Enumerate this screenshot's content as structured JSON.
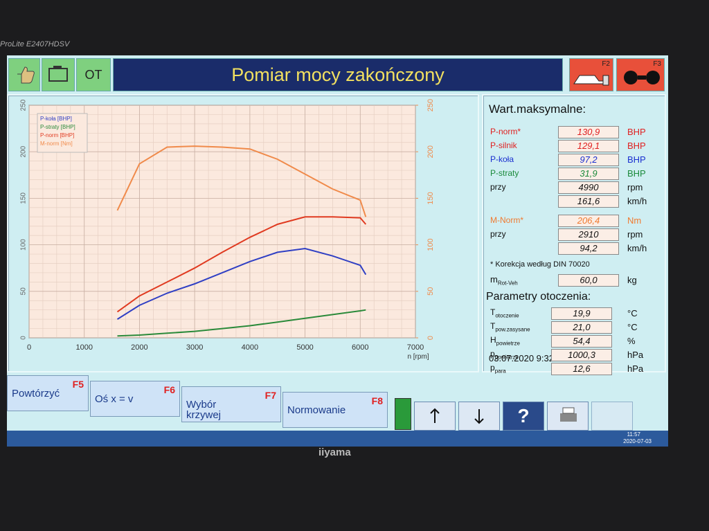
{
  "monitor": {
    "model": "ProLite E2407HDSV",
    "brand": "iiyama"
  },
  "header": {
    "ot": "OT",
    "title": "Pomiar mocy zakończony",
    "f2": "F2",
    "f3": "F3"
  },
  "chart_data": {
    "type": "line",
    "x_label": "n [rpm]",
    "x": [
      1600,
      2000,
      2500,
      3000,
      3500,
      4000,
      4500,
      5000,
      5500,
      6000,
      6100
    ],
    "series": [
      {
        "name": "P-koła [BHP]",
        "color": "#2f3fc4",
        "values": [
          20,
          35,
          48,
          58,
          70,
          82,
          92,
          96,
          88,
          78,
          68
        ]
      },
      {
        "name": "P-straty [BHP]",
        "color": "#2a8a3a",
        "values": [
          2,
          3,
          5,
          7,
          10,
          13,
          17,
          21,
          25,
          29,
          30
        ]
      },
      {
        "name": "P-norm [BHP]",
        "color": "#e03a20",
        "values": [
          28,
          45,
          60,
          75,
          92,
          108,
          122,
          130,
          130,
          129,
          122
        ]
      },
      {
        "name": "M-norm [Nm]",
        "color": "#f08a4a",
        "axis": "y2",
        "values": [
          137,
          187,
          205,
          206,
          205,
          203,
          192,
          176,
          160,
          148,
          130
        ]
      }
    ],
    "xlim": [
      0,
      7000
    ],
    "xticks": [
      0,
      1000,
      2000,
      3000,
      4000,
      5000,
      6000,
      7000
    ],
    "ylim": [
      0,
      250
    ],
    "yticks": [
      0,
      50,
      100,
      150,
      200,
      250
    ],
    "y2lim": [
      0,
      250
    ],
    "y2ticks": [
      0,
      50,
      100,
      150,
      200,
      250
    ],
    "grid": true,
    "legend": "top-left"
  },
  "panel": {
    "title": "Wart.maksymalne:",
    "rows": [
      {
        "label": "P-norm*",
        "value": "130,9",
        "unit": "BHP",
        "color": "#e02020"
      },
      {
        "label": "P-silnik",
        "value": "129,1",
        "unit": "BHP",
        "color": "#e02020"
      },
      {
        "label": "P-koła",
        "value": "97,2",
        "unit": "BHP",
        "color": "#1a2fd0"
      },
      {
        "label": "P-straty",
        "value": "31,9",
        "unit": "BHP",
        "color": "#1a8a3a"
      },
      {
        "label": "przy",
        "value": "4990",
        "unit": "rpm",
        "color": "#111111"
      },
      {
        "value": "161,6",
        "unit": "km/h",
        "color": "#111111"
      },
      {
        "label": "M-Norm*",
        "value": "206,4",
        "unit": "Nm",
        "color": "#f07a30"
      },
      {
        "label": "przy",
        "value": "2910",
        "unit": "rpm",
        "color": "#111111"
      },
      {
        "value": "94,2",
        "unit": "km/h",
        "color": "#111111"
      }
    ],
    "note": "* Korekcja według DIN 70020",
    "mass": {
      "label": "m",
      "sub": "Rot-Veh",
      "value": "60,0",
      "unit": "kg"
    },
    "env_title": "Parametry otoczenia:",
    "env_rows": [
      {
        "label": "T",
        "sub": "otoczenie",
        "value": "19,9",
        "unit": "°C"
      },
      {
        "label": "T",
        "sub": "pow.zasysane",
        "value": "21,0",
        "unit": "°C"
      },
      {
        "label": "H",
        "sub": "powietrze",
        "value": "54,4",
        "unit": "%"
      },
      {
        "label": "p",
        "sub": "powietrze",
        "value": "1000,3",
        "unit": "hPa"
      },
      {
        "label": "p",
        "sub": "para",
        "value": "12,6",
        "unit": "hPa"
      }
    ],
    "date": "03.07.2020  9:32"
  },
  "buttons": [
    {
      "label": "Powtórzyć",
      "key": "F5"
    },
    {
      "label": "Oś x = v",
      "key": "F6"
    },
    {
      "label": "Wybór krzywej",
      "key": "F7"
    },
    {
      "label": "Normowanie",
      "key": "F8"
    }
  ],
  "taskbar": {
    "time": "11:57",
    "date": "2020-07-03"
  }
}
